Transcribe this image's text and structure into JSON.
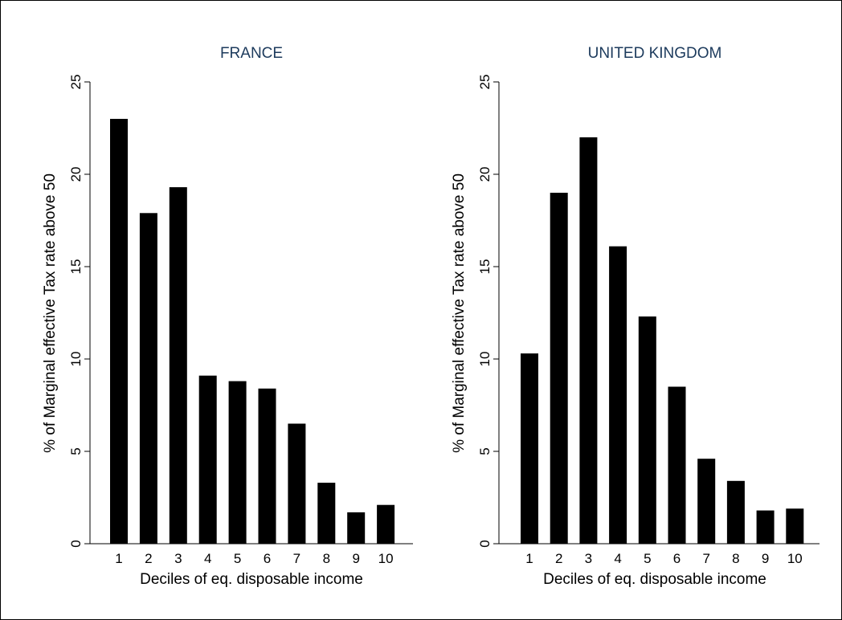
{
  "chart_data": [
    {
      "type": "bar",
      "title": "FRANCE",
      "xlabel": "Deciles of eq. disposable income",
      "ylabel": "% of Marginal effective Tax rate above 50",
      "categories": [
        "1",
        "2",
        "3",
        "4",
        "5",
        "6",
        "7",
        "8",
        "9",
        "10"
      ],
      "values": [
        23.0,
        17.9,
        19.3,
        9.1,
        8.8,
        8.4,
        6.5,
        3.3,
        1.7,
        2.1
      ],
      "ylim": [
        0,
        25
      ],
      "yticks": [
        "0",
        "5",
        "10",
        "15",
        "20",
        "25"
      ],
      "grid": false,
      "bar_color": "#000000"
    },
    {
      "type": "bar",
      "title": "UNITED KINGDOM",
      "xlabel": "Deciles of eq. disposable income",
      "ylabel": "% of Marginal effective Tax rate above 50",
      "categories": [
        "1",
        "2",
        "3",
        "4",
        "5",
        "6",
        "7",
        "8",
        "9",
        "10"
      ],
      "values": [
        10.3,
        19.0,
        22.0,
        16.1,
        12.3,
        8.5,
        4.6,
        3.4,
        1.8,
        1.9
      ],
      "ylim": [
        0,
        25
      ],
      "yticks": [
        "0",
        "5",
        "10",
        "15",
        "20",
        "25"
      ],
      "grid": false,
      "bar_color": "#000000"
    }
  ],
  "colors": {
    "title": "#1c3a5c",
    "bars": "#000000",
    "axes": "#000000",
    "background": "#ffffff"
  }
}
